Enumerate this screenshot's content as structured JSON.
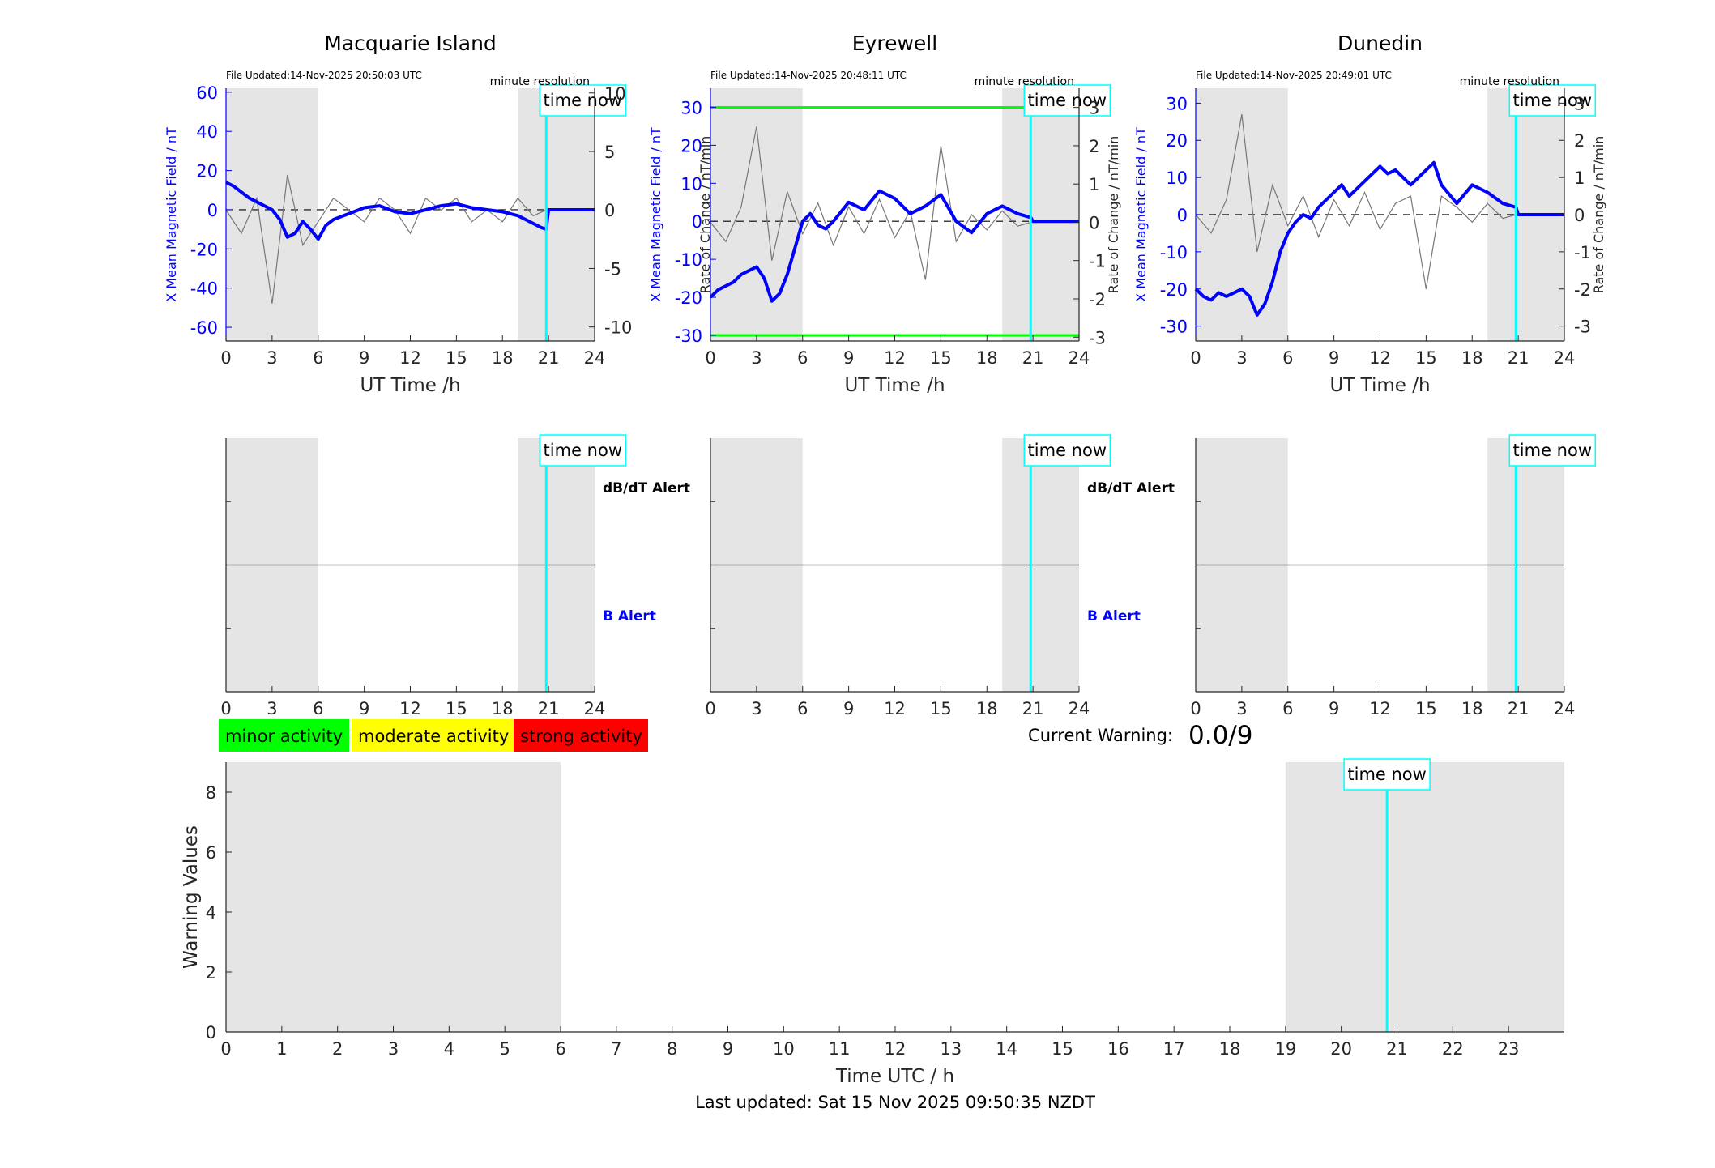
{
  "footer": {
    "last_updated": "Last updated: Sat 15 Nov 2025 09:50:35 NZDT"
  },
  "legend": {
    "minor": "minor activity",
    "moderate": "moderate activity",
    "strong": "strong activity"
  },
  "colors": {
    "minor": "#00ff00",
    "moderate": "#ffff00",
    "strong": "#ff0000",
    "time_now": "#00ffff",
    "field": "#0000ff",
    "night": "#e5e5e5"
  },
  "warning": {
    "label": "Current Warning:",
    "value": "0.0/9"
  },
  "time_now_label": "time now",
  "alert_labels": {
    "dbdt": "dB/dT Alert",
    "b": "B Alert"
  },
  "chart_data": [
    {
      "type": "line",
      "title": "Macquarie Island",
      "file_updated": "File Updated:14-Nov-2025 20:50:03 UTC",
      "resolution": "minute resolution",
      "xlabel": "UT Time /h",
      "ylabel": "X Mean Magnetic Field / nT",
      "ylabel_right": "Rate of Change / nT/min",
      "xlim": [
        0,
        24
      ],
      "ylim": [
        -67,
        62
      ],
      "ylim_right": [
        -11.2,
        10.4
      ],
      "yticks": [
        -60,
        -40,
        -20,
        0,
        20,
        40,
        60
      ],
      "yticks_right": [
        -10,
        -5,
        0,
        5,
        10
      ],
      "xticks": [
        0,
        3,
        6,
        9,
        12,
        15,
        18,
        21,
        24
      ],
      "night_shading_h": [
        [
          0,
          6
        ],
        [
          19,
          24
        ]
      ],
      "time_now_h": 20.85,
      "alert_thresholds": null,
      "series": [
        {
          "color": "blue",
          "axis": "left",
          "x": [
            0,
            0.5,
            1,
            1.5,
            2,
            2.5,
            3,
            3.5,
            4,
            4.5,
            5,
            5.5,
            6,
            6.5,
            7,
            8,
            9,
            10,
            11,
            12,
            13,
            14,
            15,
            16,
            17,
            18,
            19,
            19.5,
            20,
            20.5,
            20.85,
            21,
            24
          ],
          "values": [
            14,
            12,
            9,
            6,
            4,
            2,
            0,
            -5,
            -14,
            -12,
            -6,
            -10,
            -15,
            -8,
            -5,
            -2,
            1,
            2,
            -1,
            -2,
            0,
            2,
            3,
            1,
            0,
            -1,
            -3,
            -5,
            -7,
            -9,
            -10,
            0,
            0
          ]
        },
        {
          "color": "gray",
          "axis": "right",
          "x": [
            0,
            1,
            2,
            3,
            4,
            5,
            6,
            7,
            8,
            9,
            10,
            11,
            12,
            13,
            14,
            15,
            16,
            17,
            18,
            19,
            20,
            20.85
          ],
          "values": [
            0,
            -2,
            1,
            -8,
            3,
            -3,
            -1,
            1,
            0,
            -1,
            1,
            0,
            -2,
            1,
            0,
            1,
            -1,
            0,
            -1,
            1,
            -0.5,
            0
          ]
        }
      ]
    },
    {
      "type": "line",
      "title": "Eyrewell",
      "file_updated": "File Updated:14-Nov-2025 20:48:11 UTC",
      "resolution": "minute resolution",
      "xlabel": "UT Time /h",
      "ylabel": "X Mean Magnetic Field / nT",
      "ylabel_right": "Rate of Change / nT/min",
      "xlim": [
        0,
        24
      ],
      "ylim": [
        -31.5,
        35
      ],
      "ylim_right": [
        -3.1,
        3.5
      ],
      "yticks": [
        -30,
        -20,
        -10,
        0,
        10,
        20,
        30
      ],
      "yticks_right": [
        -3,
        -2,
        -1,
        0,
        1,
        2,
        3
      ],
      "xticks": [
        0,
        3,
        6,
        9,
        12,
        15,
        18,
        21,
        24
      ],
      "night_shading_h": [
        [
          0,
          6
        ],
        [
          19,
          24
        ]
      ],
      "time_now_h": 20.85,
      "alert_thresholds": [
        -30,
        30
      ],
      "series": [
        {
          "color": "blue",
          "axis": "left",
          "x": [
            0,
            0.5,
            1,
            1.5,
            2,
            2.5,
            3,
            3.5,
            4,
            4.5,
            5,
            5.5,
            6,
            6.5,
            7,
            7.5,
            8,
            9,
            10,
            11,
            12,
            13,
            14,
            15,
            16,
            17,
            18,
            19,
            20,
            20.85,
            21,
            24
          ],
          "values": [
            -20,
            -18,
            -17,
            -16,
            -14,
            -13,
            -12,
            -15,
            -21,
            -19,
            -14,
            -7,
            0,
            2,
            -1,
            -2,
            0,
            5,
            3,
            8,
            6,
            2,
            4,
            7,
            0,
            -3,
            2,
            4,
            2,
            1,
            0,
            0
          ]
        },
        {
          "color": "gray",
          "axis": "right",
          "x": [
            0,
            1,
            2,
            3,
            4,
            5,
            6,
            7,
            8,
            9,
            10,
            11,
            12,
            13,
            14,
            15,
            16,
            17,
            18,
            19,
            20,
            20.85
          ],
          "values": [
            0,
            -0.5,
            0.4,
            2.5,
            -1,
            0.8,
            -0.3,
            0.5,
            -0.6,
            0.4,
            -0.3,
            0.6,
            -0.4,
            0.3,
            -1.5,
            2,
            -0.5,
            0.2,
            -0.2,
            0.3,
            -0.1,
            0
          ]
        }
      ]
    },
    {
      "type": "line",
      "title": "Dunedin",
      "file_updated": "File Updated:14-Nov-2025 20:49:01 UTC",
      "resolution": "minute resolution",
      "xlabel": "UT Time /h",
      "ylabel": "X Mean Magnetic Field / nT",
      "ylabel_right": "Rate of Change / nT/min",
      "xlim": [
        0,
        24
      ],
      "ylim": [
        -34,
        34
      ],
      "ylim_right": [
        -3.4,
        3.4
      ],
      "yticks": [
        -30,
        -20,
        -10,
        0,
        10,
        20,
        30
      ],
      "yticks_right": [
        -3,
        -2,
        -1,
        0,
        1,
        2,
        3
      ],
      "xticks": [
        0,
        3,
        6,
        9,
        12,
        15,
        18,
        21,
        24
      ],
      "night_shading_h": [
        [
          0,
          6
        ],
        [
          19,
          24
        ]
      ],
      "time_now_h": 20.85,
      "alert_thresholds": null,
      "series": [
        {
          "color": "blue",
          "axis": "left",
          "x": [
            0,
            0.5,
            1,
            1.5,
            2,
            2.5,
            3,
            3.5,
            4,
            4.5,
            5,
            5.5,
            6,
            6.5,
            7,
            7.5,
            8,
            9,
            9.5,
            10,
            11,
            12,
            12.5,
            13,
            14,
            15,
            15.5,
            16,
            17,
            18,
            19,
            20,
            20.85,
            21,
            24
          ],
          "values": [
            -20,
            -22,
            -23,
            -21,
            -22,
            -21,
            -20,
            -22,
            -27,
            -24,
            -18,
            -10,
            -5,
            -2,
            0,
            -1,
            2,
            6,
            8,
            5,
            9,
            13,
            11,
            12,
            8,
            12,
            14,
            8,
            3,
            8,
            6,
            3,
            2,
            0,
            0
          ]
        },
        {
          "color": "gray",
          "axis": "right",
          "x": [
            0,
            1,
            2,
            3,
            4,
            5,
            6,
            7,
            8,
            9,
            10,
            11,
            12,
            13,
            14,
            15,
            16,
            17,
            18,
            19,
            20,
            20.85
          ],
          "values": [
            0,
            -0.5,
            0.4,
            2.7,
            -1,
            0.8,
            -0.3,
            0.5,
            -0.6,
            0.4,
            -0.3,
            0.6,
            -0.4,
            0.3,
            0.5,
            -2,
            0.5,
            0.2,
            -0.2,
            0.3,
            -0.1,
            0
          ]
        }
      ]
    },
    {
      "type": "line",
      "title": "",
      "xlabel": "",
      "ylabel": "",
      "xlim": [
        0,
        24
      ],
      "ylim": [
        -1,
        1
      ],
      "xticks": [
        0,
        3,
        6,
        9,
        12,
        15,
        18,
        21,
        24
      ],
      "night_shading_h": [
        [
          0,
          6
        ],
        [
          19,
          24
        ]
      ],
      "time_now_h": 20.85,
      "series": [
        {
          "x": [
            0,
            24
          ],
          "values": [
            0,
            0
          ]
        }
      ]
    },
    {
      "type": "line",
      "title": "",
      "xlabel": "",
      "ylabel": "",
      "xlim": [
        0,
        24
      ],
      "ylim": [
        -1,
        1
      ],
      "xticks": [
        0,
        3,
        6,
        9,
        12,
        15,
        18,
        21,
        24
      ],
      "night_shading_h": [
        [
          0,
          6
        ],
        [
          19,
          24
        ]
      ],
      "time_now_h": 20.85,
      "series": [
        {
          "x": [
            0,
            24
          ],
          "values": [
            0,
            0
          ]
        }
      ]
    },
    {
      "type": "line",
      "title": "",
      "xlabel": "",
      "ylabel": "",
      "xlim": [
        0,
        24
      ],
      "ylim": [
        -1,
        1
      ],
      "xticks": [
        0,
        3,
        6,
        9,
        12,
        15,
        18,
        21,
        24
      ],
      "night_shading_h": [
        [
          0,
          6
        ],
        [
          19,
          24
        ]
      ],
      "time_now_h": 20.85,
      "series": [
        {
          "x": [
            0,
            24
          ],
          "values": [
            0,
            0
          ]
        }
      ]
    },
    {
      "type": "bar",
      "title": "",
      "xlabel": "Time UTC / h",
      "ylabel": "Warning Values",
      "xlim": [
        0,
        24
      ],
      "ylim": [
        0,
        9
      ],
      "xticks": [
        0,
        1,
        2,
        3,
        4,
        5,
        6,
        7,
        8,
        9,
        10,
        11,
        12,
        13,
        14,
        15,
        16,
        17,
        18,
        19,
        20,
        21,
        22,
        23
      ],
      "yticks": [
        0,
        2,
        4,
        6,
        8
      ],
      "night_shading_h": [
        [
          0,
          6
        ],
        [
          19,
          24
        ]
      ],
      "time_now_h": 20.82,
      "series": [
        {
          "x": [],
          "values": []
        }
      ]
    }
  ]
}
